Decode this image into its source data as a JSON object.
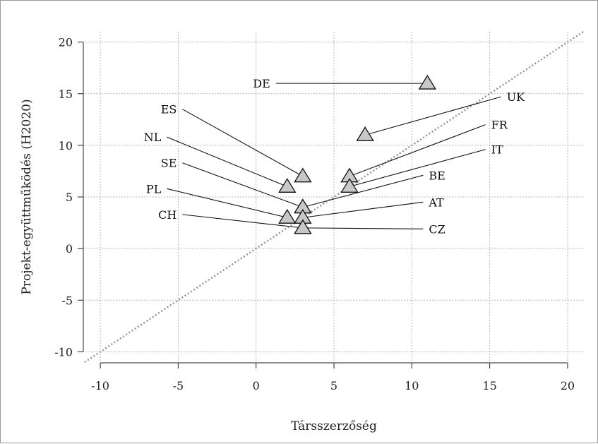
{
  "chart_data": {
    "type": "scatter",
    "xlabel": "Társszerzőség",
    "ylabel": "Projekt-együttműködés (H2020)",
    "xlim": [
      -11,
      21
    ],
    "ylim": [
      -11,
      21
    ],
    "x_ticks": [
      -10,
      -5,
      0,
      5,
      10,
      15,
      20
    ],
    "y_ticks": [
      -10,
      -5,
      0,
      5,
      10,
      15,
      20
    ],
    "x_tick_labels": [
      "-10",
      "-5",
      "0",
      "5",
      "10",
      "15",
      "20"
    ],
    "y_tick_labels": [
      "-10",
      "-5",
      "0",
      "5",
      "10",
      "15",
      "20"
    ],
    "grid": true,
    "reference_line": "y = x",
    "marker": "triangle",
    "marker_color": "#c8c8c8",
    "points": [
      {
        "label": "DE",
        "x": 11,
        "y": 16,
        "label_x": 1,
        "label_y": 16
      },
      {
        "label": "UK",
        "x": 7,
        "y": 11,
        "label_x": 16,
        "label_y": 14.7
      },
      {
        "label": "ES",
        "x": 3,
        "y": 7,
        "label_x": -5,
        "label_y": 13.5
      },
      {
        "label": "FR",
        "x": 6,
        "y": 7,
        "label_x": 15,
        "label_y": 12
      },
      {
        "label": "NL",
        "x": 2,
        "y": 6,
        "label_x": -6,
        "label_y": 10.8
      },
      {
        "label": "IT",
        "x": 6,
        "y": 6,
        "label_x": 15,
        "label_y": 9.6
      },
      {
        "label": "SE",
        "x": 3,
        "y": 4,
        "label_x": -5,
        "label_y": 8.3
      },
      {
        "label": "BE",
        "x": 3,
        "y": 4,
        "label_x": 11,
        "label_y": 7.1
      },
      {
        "label": "PL",
        "x": 2,
        "y": 3,
        "label_x": -6,
        "label_y": 5.8
      },
      {
        "label": "AT",
        "x": 3,
        "y": 3,
        "label_x": 11,
        "label_y": 4.5
      },
      {
        "label": "CH",
        "x": 3,
        "y": 2,
        "label_x": -5,
        "label_y": 3.3
      },
      {
        "label": "CZ",
        "x": 3,
        "y": 2,
        "label_x": 11,
        "label_y": 1.9
      }
    ]
  }
}
